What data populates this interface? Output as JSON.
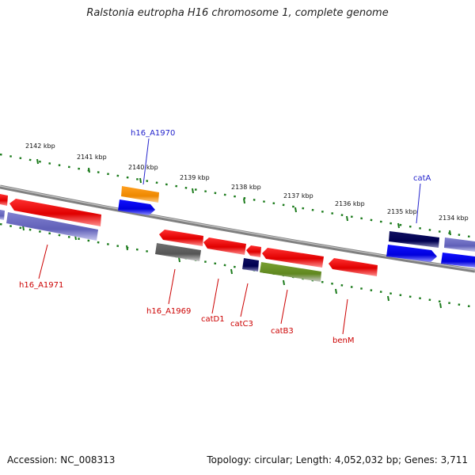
{
  "title": "Ralstonia eutropha H16 chromosome 1, complete genome",
  "footer": {
    "accession": "Accession: NC_008313",
    "stats": "Topology: circular; Length: 4,052,032 bp; Genes: 3,711"
  },
  "colors": {
    "backbone": "#8a8a8a",
    "tick": "#1a7a1a",
    "forward_label": "#2222cc",
    "reverse_label": "#cc0000"
  },
  "scale_labels": [
    "2142 kbp",
    "2141 kbp",
    "2140 kbp",
    "2139 kbp",
    "2138 kbp",
    "2137 kbp",
    "2136 kbp",
    "2135 kbp",
    "2134 kbp"
  ],
  "gene_labels": [
    {
      "text": "h16_A1970",
      "strand": "forward"
    },
    {
      "text": "catA",
      "strand": "forward"
    },
    {
      "text": "h16_A1971",
      "strand": "reverse"
    },
    {
      "text": "h16_A1969",
      "strand": "reverse"
    },
    {
      "text": "catD1",
      "strand": "reverse"
    },
    {
      "text": "catC3",
      "strand": "reverse"
    },
    {
      "text": "catB3",
      "strand": "reverse"
    },
    {
      "text": "benM",
      "strand": "reverse"
    }
  ]
}
